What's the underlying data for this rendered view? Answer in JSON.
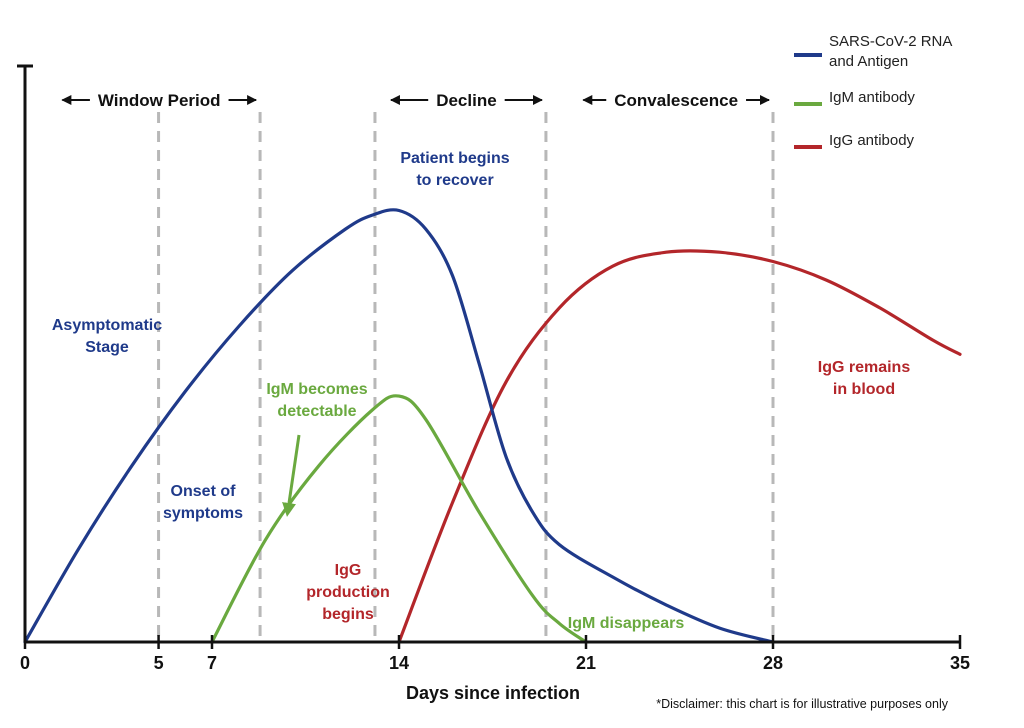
{
  "chart_data": {
    "type": "line",
    "xlabel": "Days since infection",
    "x_ticks": [
      0,
      5,
      7,
      14,
      21,
      28,
      35
    ],
    "xlim": [
      0,
      35
    ],
    "ylim": [
      0,
      100
    ],
    "grid": false,
    "legend_position": "top-right",
    "series": [
      {
        "name": "SARS-CoV-2 RNA and Antigen",
        "color": "#1f3a8a",
        "x": [
          0,
          2,
          4,
          6,
          8,
          10,
          12,
          13,
          14,
          15,
          16,
          17,
          18,
          19,
          20,
          22,
          24,
          26,
          28
        ],
        "y": [
          0,
          20,
          38,
          54,
          68,
          80,
          89,
          92,
          93,
          89,
          79,
          60,
          40,
          28,
          21,
          14,
          8,
          3,
          0
        ]
      },
      {
        "name": "IgM antibody",
        "color": "#6aa93f",
        "x": [
          7,
          9,
          11,
          13,
          14,
          15,
          17,
          19,
          20,
          21
        ],
        "y": [
          0,
          22,
          38,
          50,
          53,
          48,
          28,
          10,
          4,
          0
        ]
      },
      {
        "name": "IgG antibody",
        "color": "#b3262a",
        "x": [
          14,
          16,
          18,
          20,
          22,
          24,
          26,
          28,
          30,
          32,
          34,
          35
        ],
        "y": [
          0,
          30,
          56,
          72,
          81,
          84,
          84,
          82,
          78,
          72,
          65,
          62
        ]
      }
    ],
    "periods": [
      {
        "label": "Window Period",
        "from": 0.8,
        "to": 8.8
      },
      {
        "label": "Decline",
        "from": 13.1,
        "to": 19.5
      },
      {
        "label": "Convalescence",
        "from": 20.3,
        "to": 28
      }
    ],
    "markers": [
      5,
      8.8,
      13.1,
      19.5,
      28
    ],
    "annotations": [
      {
        "text": "Asymptomatic\nStage",
        "color": "#1f3a8a"
      },
      {
        "text": "Onset of\nsymptoms",
        "color": "#1f3a8a"
      },
      {
        "text": "Patient begins\nto recover",
        "color": "#1f3a8a"
      },
      {
        "text": "IgM becomes\ndetectable",
        "color": "#6aa93f"
      },
      {
        "text": "IgG\nproduction\nbegins",
        "color": "#b3262a"
      },
      {
        "text": "IgM disappears",
        "color": "#6aa93f"
      },
      {
        "text": "IgG remains\nin blood",
        "color": "#b3262a"
      }
    ],
    "disclaimer": "*Disclaimer: this chart is for illustrative purposes only"
  }
}
